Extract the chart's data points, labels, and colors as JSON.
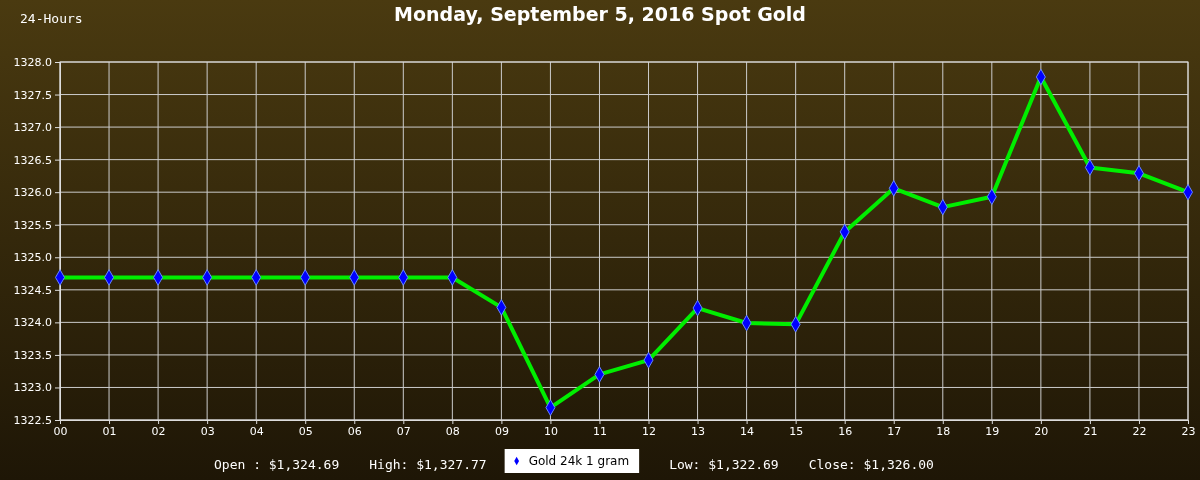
{
  "chart_data": {
    "type": "line",
    "title": "Monday, September 5, 2016 Spot Gold",
    "subtitle": "24-Hours",
    "categories": [
      "00",
      "01",
      "02",
      "03",
      "04",
      "05",
      "06",
      "07",
      "08",
      "09",
      "10",
      "11",
      "12",
      "13",
      "14",
      "15",
      "16",
      "17",
      "18",
      "19",
      "20",
      "21",
      "22",
      "23"
    ],
    "series": [
      {
        "name": "Gold 24k 1 gram",
        "color": "#00ee00",
        "values": [
          1324.69,
          1324.69,
          1324.69,
          1324.69,
          1324.69,
          1324.69,
          1324.69,
          1324.69,
          1324.69,
          1324.23,
          1322.69,
          1323.2,
          1323.42,
          1324.22,
          1323.99,
          1323.97,
          1325.39,
          1326.06,
          1325.77,
          1325.93,
          1327.77,
          1326.38,
          1326.29,
          1326.0
        ]
      }
    ],
    "ylim": [
      1322.5,
      1328.0
    ],
    "yticks": [
      {
        "value": 1322.5,
        "label": "1322.5"
      },
      {
        "value": 1323,
        "label": "1323.0"
      },
      {
        "value": 1323.5,
        "label": "1323.5"
      },
      {
        "value": 1324,
        "label": "1324.0"
      },
      {
        "value": 1324.5,
        "label": "1324.5"
      },
      {
        "value": 1325,
        "label": "1325.0"
      },
      {
        "value": 1325.5,
        "label": "1325.5"
      },
      {
        "value": 1326,
        "label": "1326.0"
      },
      {
        "value": 1326.5,
        "label": "1326.5"
      },
      {
        "value": 1327,
        "label": "1327.0"
      },
      {
        "value": 1327.5,
        "label": "1327.5"
      },
      {
        "value": 1328,
        "label": "1328.0"
      }
    ],
    "grid": true,
    "marker": "diamond",
    "legend": "bottom",
    "annotations": [
      "Open : $1,324.69",
      "High: $1,327.77",
      "Low: $1,322.69",
      "Close: $1,326.00"
    ]
  }
}
